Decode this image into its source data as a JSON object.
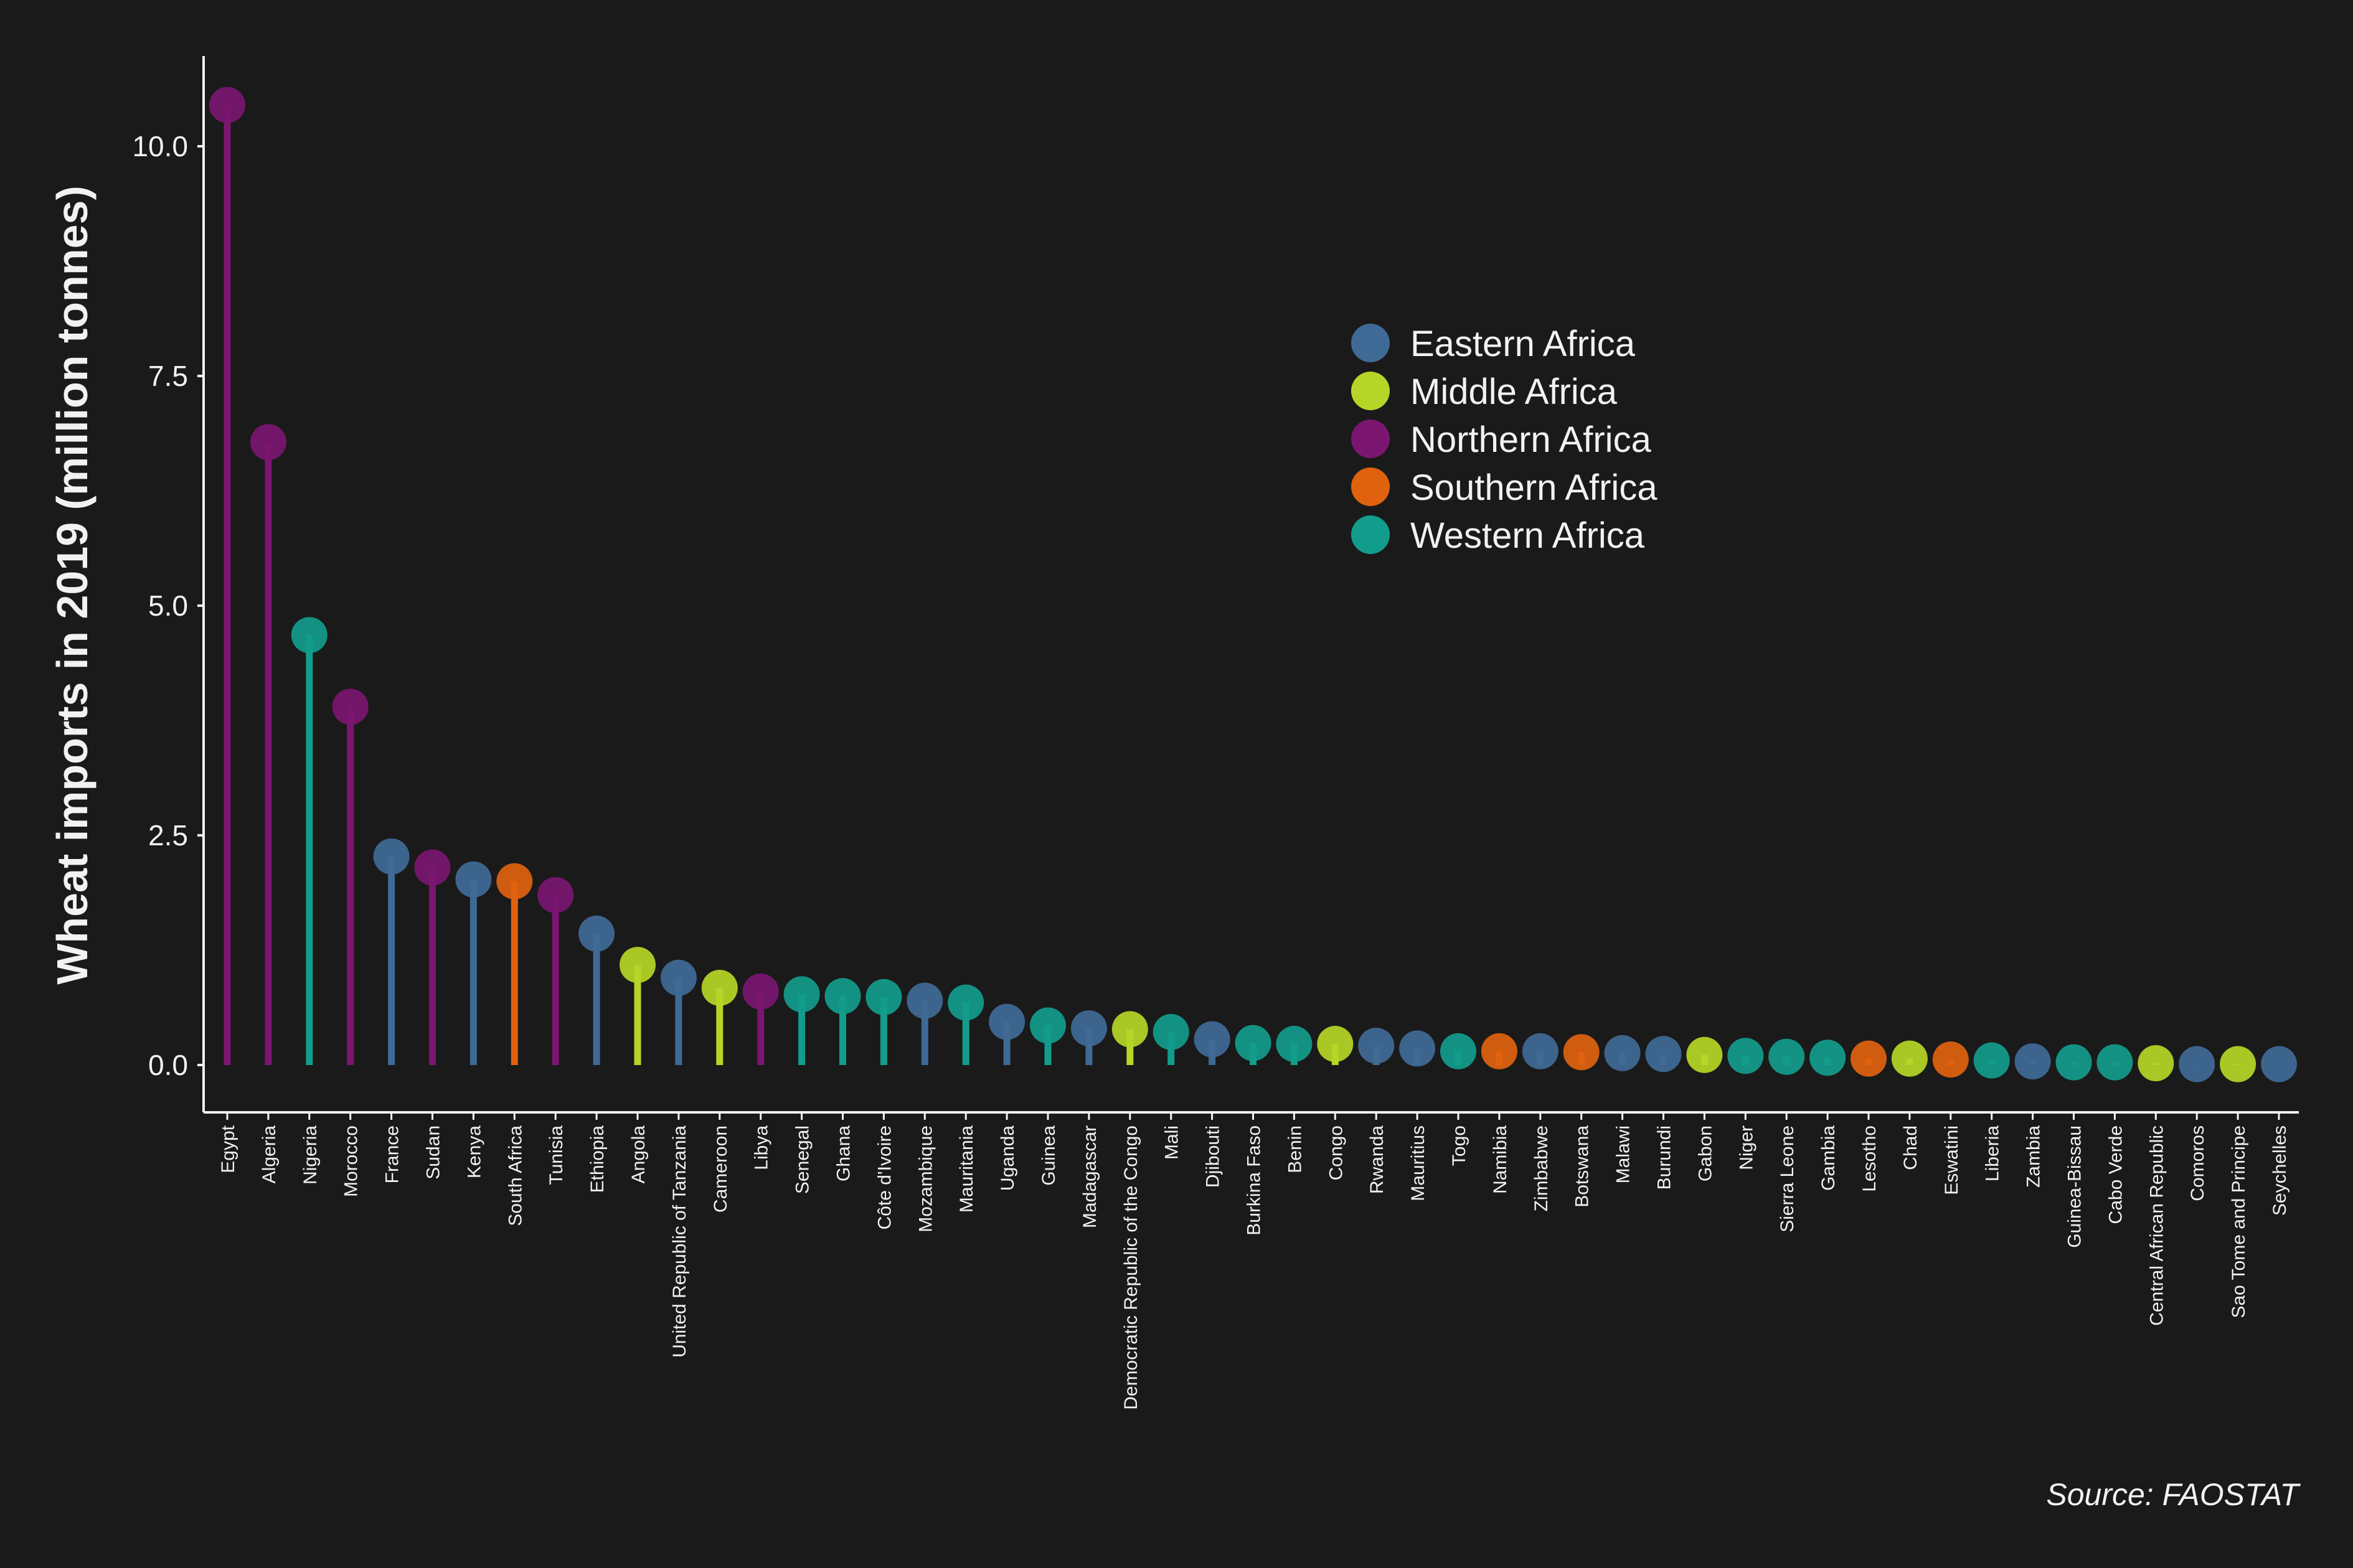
{
  "chart_data": {
    "type": "lollipop",
    "ylabel": "Wheat imports in 2019 (million tonnes)",
    "y_ticks": [
      "0.0",
      "2.5",
      "5.0",
      "7.5",
      "10.0"
    ],
    "y_tick_values": [
      0,
      2.5,
      5,
      7.5,
      10
    ],
    "ylim": [
      -0.25,
      10.9
    ],
    "grid": false,
    "legend_position": "upper-center-right",
    "source": "Source: FAOSTAT",
    "regions": [
      {
        "name": "Eastern Africa",
        "color": "#3f6a96"
      },
      {
        "name": "Middle Africa",
        "color": "#b5d626"
      },
      {
        "name": "Northern Africa",
        "color": "#7a1670"
      },
      {
        "name": "Southern Africa",
        "color": "#e0620e"
      },
      {
        "name": "Western Africa",
        "color": "#129c8c"
      }
    ],
    "points": [
      {
        "country": "Egypt",
        "value": 10.45,
        "region": 2
      },
      {
        "country": "Algeria",
        "value": 6.78,
        "region": 2
      },
      {
        "country": "Nigeria",
        "value": 4.68,
        "region": 4
      },
      {
        "country": "Morocco",
        "value": 3.9,
        "region": 2
      },
      {
        "country": "France",
        "value": 2.27,
        "region": 0
      },
      {
        "country": "Sudan",
        "value": 2.15,
        "region": 2
      },
      {
        "country": "Kenya",
        "value": 2.02,
        "region": 0
      },
      {
        "country": "South Africa",
        "value": 2.0,
        "region": 3
      },
      {
        "country": "Tunisia",
        "value": 1.85,
        "region": 2
      },
      {
        "country": "Ethiopia",
        "value": 1.43,
        "region": 0
      },
      {
        "country": "Angola",
        "value": 1.09,
        "region": 1
      },
      {
        "country": "United Republic of Tanzania",
        "value": 0.95,
        "region": 0
      },
      {
        "country": "Cameroon",
        "value": 0.84,
        "region": 1
      },
      {
        "country": "Libya",
        "value": 0.8,
        "region": 2
      },
      {
        "country": "Senegal",
        "value": 0.77,
        "region": 4
      },
      {
        "country": "Ghana",
        "value": 0.75,
        "region": 4
      },
      {
        "country": "Côte d'Ivoire",
        "value": 0.74,
        "region": 4
      },
      {
        "country": "Mozambique",
        "value": 0.7,
        "region": 0
      },
      {
        "country": "Mauritania",
        "value": 0.68,
        "region": 4
      },
      {
        "country": "Uganda",
        "value": 0.47,
        "region": 0
      },
      {
        "country": "Guinea",
        "value": 0.43,
        "region": 4
      },
      {
        "country": "Madagascar",
        "value": 0.4,
        "region": 0
      },
      {
        "country": "Democratic Republic of the Congo",
        "value": 0.39,
        "region": 1
      },
      {
        "country": "Mali",
        "value": 0.36,
        "region": 4
      },
      {
        "country": "Djibouti",
        "value": 0.28,
        "region": 0
      },
      {
        "country": "Burkina Faso",
        "value": 0.24,
        "region": 4
      },
      {
        "country": "Benin",
        "value": 0.23,
        "region": 4
      },
      {
        "country": "Congo",
        "value": 0.23,
        "region": 1
      },
      {
        "country": "Rwanda",
        "value": 0.21,
        "region": 0
      },
      {
        "country": "Mauritius",
        "value": 0.18,
        "region": 0
      },
      {
        "country": "Togo",
        "value": 0.15,
        "region": 4
      },
      {
        "country": "Namibia",
        "value": 0.15,
        "region": 3
      },
      {
        "country": "Zimbabwe",
        "value": 0.15,
        "region": 0
      },
      {
        "country": "Botswana",
        "value": 0.14,
        "region": 3
      },
      {
        "country": "Malawi",
        "value": 0.13,
        "region": 0
      },
      {
        "country": "Burundi",
        "value": 0.12,
        "region": 0
      },
      {
        "country": "Gabon",
        "value": 0.11,
        "region": 1
      },
      {
        "country": "Niger",
        "value": 0.1,
        "region": 4
      },
      {
        "country": "Sierra Leone",
        "value": 0.09,
        "region": 4
      },
      {
        "country": "Gambia",
        "value": 0.08,
        "region": 4
      },
      {
        "country": "Lesotho",
        "value": 0.07,
        "region": 3
      },
      {
        "country": "Chad",
        "value": 0.07,
        "region": 1
      },
      {
        "country": "Eswatini",
        "value": 0.06,
        "region": 3
      },
      {
        "country": "Liberia",
        "value": 0.05,
        "region": 4
      },
      {
        "country": "Zambia",
        "value": 0.04,
        "region": 0
      },
      {
        "country": "Guinea-Bissau",
        "value": 0.03,
        "region": 4
      },
      {
        "country": "Cabo Verde",
        "value": 0.03,
        "region": 4
      },
      {
        "country": "Central African Republic",
        "value": 0.02,
        "region": 1
      },
      {
        "country": "Comoros",
        "value": 0.01,
        "region": 0
      },
      {
        "country": "Sao Tome and Principe",
        "value": 0.01,
        "region": 1
      },
      {
        "country": "Seychelles",
        "value": 0.01,
        "region": 0
      }
    ]
  }
}
